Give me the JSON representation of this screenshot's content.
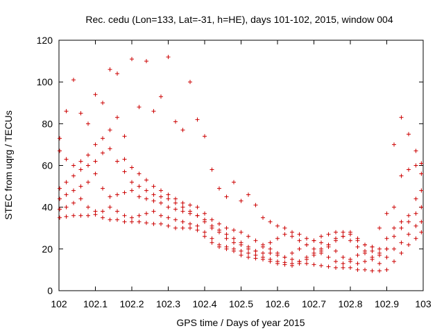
{
  "chart_data": {
    "type": "scatter",
    "title": "Rec. cedu (Lon=133, Lat=-31, h=HE), days 101-102, 2015, window 004",
    "xlabel": "GPS time / Days of year 2015",
    "ylabel": "STEC from uqrg / TECUs",
    "xlim": [
      102,
      103
    ],
    "ylim": [
      0,
      120
    ],
    "x_ticks": [
      "102",
      "102.1",
      "102.2",
      "102.3",
      "102.4",
      "102.5",
      "102.6",
      "102.7",
      "102.8",
      "102.9",
      "103"
    ],
    "y_ticks": [
      "0",
      "20",
      "40",
      "60",
      "80",
      "100",
      "120"
    ],
    "grid": false,
    "legend": "none",
    "marker": "plus",
    "color": "#cc0000",
    "series": [
      {
        "points": [
          [
            102.002,
            35
          ],
          [
            102.02,
            35.5
          ],
          [
            102.04,
            36
          ],
          [
            102.06,
            36
          ],
          [
            102.08,
            36
          ],
          [
            102.1,
            36.5
          ],
          [
            102.12,
            35
          ],
          [
            102.14,
            34
          ],
          [
            102.16,
            34
          ],
          [
            102.18,
            33
          ],
          [
            102.2,
            33
          ],
          [
            102.22,
            33
          ],
          [
            102.24,
            32.5
          ],
          [
            102.26,
            32
          ],
          [
            102.28,
            32
          ],
          [
            102.3,
            31
          ],
          [
            102.32,
            30
          ],
          [
            102.34,
            30
          ],
          [
            102.36,
            30
          ],
          [
            102.38,
            29
          ],
          [
            102.4,
            28
          ],
          [
            102.42,
            25
          ],
          [
            102.44,
            22
          ],
          [
            102.46,
            21
          ],
          [
            102.48,
            20
          ],
          [
            102.5,
            19
          ],
          [
            102.52,
            18
          ],
          [
            102.54,
            17
          ],
          [
            102.56,
            16
          ],
          [
            102.58,
            15
          ],
          [
            102.6,
            14
          ],
          [
            102.62,
            13.5
          ],
          [
            102.64,
            13
          ],
          [
            102.66,
            13
          ],
          [
            102.68,
            13
          ],
          [
            102.7,
            12.5
          ],
          [
            102.72,
            12
          ],
          [
            102.74,
            11.5
          ],
          [
            102.76,
            11
          ],
          [
            102.78,
            11
          ],
          [
            102.8,
            11
          ],
          [
            102.82,
            10
          ],
          [
            102.84,
            10
          ],
          [
            102.86,
            9.5
          ],
          [
            102.88,
            9.5
          ],
          [
            102.9,
            10
          ],
          [
            102.92,
            14
          ],
          [
            102.94,
            18
          ],
          [
            102.96,
            22
          ],
          [
            102.98,
            25
          ],
          [
            102.995,
            28
          ]
        ]
      },
      {
        "points": [
          [
            102.002,
            39
          ],
          [
            102.02,
            40
          ],
          [
            102.04,
            42
          ],
          [
            102.06,
            44
          ],
          [
            102.08,
            40
          ],
          [
            102.1,
            38
          ],
          [
            102.12,
            38
          ],
          [
            102.14,
            40
          ],
          [
            102.16,
            38
          ],
          [
            102.18,
            36
          ],
          [
            102.2,
            35
          ],
          [
            102.22,
            36
          ],
          [
            102.24,
            37
          ],
          [
            102.26,
            38
          ],
          [
            102.28,
            36
          ],
          [
            102.3,
            35
          ],
          [
            102.32,
            34
          ],
          [
            102.34,
            33
          ],
          [
            102.36,
            32
          ],
          [
            102.38,
            31
          ],
          [
            102.4,
            26
          ],
          [
            102.42,
            23
          ],
          [
            102.44,
            21
          ],
          [
            102.46,
            20
          ],
          [
            102.48,
            19
          ],
          [
            102.5,
            17
          ],
          [
            102.52,
            16
          ],
          [
            102.54,
            15.5
          ],
          [
            102.56,
            15
          ],
          [
            102.58,
            14
          ],
          [
            102.6,
            13
          ],
          [
            102.62,
            12.5
          ],
          [
            102.64,
            12
          ],
          [
            102.66,
            14
          ],
          [
            102.68,
            16
          ],
          [
            102.7,
            18
          ],
          [
            102.72,
            20
          ],
          [
            102.74,
            22
          ],
          [
            102.76,
            24
          ],
          [
            102.78,
            26
          ],
          [
            102.8,
            24
          ],
          [
            102.82,
            21
          ],
          [
            102.84,
            18
          ],
          [
            102.86,
            15
          ],
          [
            102.88,
            13
          ],
          [
            102.9,
            16
          ],
          [
            102.92,
            20
          ],
          [
            102.94,
            23
          ],
          [
            102.96,
            27
          ],
          [
            102.98,
            31
          ],
          [
            102.995,
            33
          ]
        ]
      },
      {
        "points": [
          [
            102.002,
            44
          ],
          [
            102.02,
            46
          ],
          [
            102.04,
            48
          ],
          [
            102.06,
            50
          ],
          [
            102.08,
            52
          ],
          [
            102.1,
            56
          ],
          [
            102.12,
            49
          ],
          [
            102.14,
            45
          ],
          [
            102.16,
            46
          ],
          [
            102.18,
            47
          ],
          [
            102.2,
            48
          ],
          [
            102.22,
            45
          ],
          [
            102.24,
            44
          ],
          [
            102.26,
            43
          ],
          [
            102.28,
            42
          ],
          [
            102.3,
            40
          ],
          [
            102.32,
            39
          ],
          [
            102.34,
            38
          ],
          [
            102.36,
            37
          ],
          [
            102.38,
            36
          ],
          [
            102.4,
            34
          ],
          [
            102.42,
            31
          ],
          [
            102.44,
            29
          ],
          [
            102.46,
            27
          ],
          [
            102.48,
            25
          ],
          [
            102.5,
            23
          ],
          [
            102.52,
            21
          ],
          [
            102.54,
            19
          ],
          [
            102.56,
            18
          ],
          [
            102.58,
            18
          ],
          [
            102.6,
            17
          ],
          [
            102.62,
            16
          ],
          [
            102.64,
            18
          ],
          [
            102.66,
            20
          ],
          [
            102.68,
            22
          ],
          [
            102.7,
            24
          ],
          [
            102.72,
            23
          ],
          [
            102.74,
            21
          ],
          [
            102.76,
            19
          ],
          [
            102.78,
            16
          ],
          [
            102.8,
            14
          ],
          [
            102.82,
            13
          ],
          [
            102.84,
            14
          ],
          [
            102.86,
            16
          ],
          [
            102.88,
            18
          ],
          [
            102.9,
            20
          ],
          [
            102.92,
            26
          ],
          [
            102.94,
            30
          ],
          [
            102.96,
            33
          ],
          [
            102.98,
            37
          ],
          [
            102.995,
            40
          ]
        ]
      },
      {
        "points": [
          [
            102.002,
            49
          ],
          [
            102.02,
            52
          ],
          [
            102.04,
            55
          ],
          [
            102.06,
            58
          ],
          [
            102.08,
            60
          ],
          [
            102.1,
            62
          ],
          [
            102.12,
            66
          ],
          [
            102.14,
            68
          ],
          [
            102.16,
            62
          ],
          [
            102.18,
            57
          ],
          [
            102.2,
            52
          ],
          [
            102.22,
            50
          ],
          [
            102.24,
            48
          ],
          [
            102.26,
            46
          ],
          [
            102.28,
            45
          ],
          [
            102.3,
            44
          ],
          [
            102.32,
            42
          ],
          [
            102.34,
            40
          ],
          [
            102.36,
            38
          ],
          [
            102.38,
            36
          ],
          [
            102.4,
            33
          ],
          [
            102.42,
            30
          ],
          [
            102.44,
            28
          ],
          [
            102.46,
            25
          ],
          [
            102.48,
            23
          ],
          [
            102.5,
            22
          ],
          [
            102.52,
            20
          ],
          [
            102.54,
            19
          ],
          [
            102.56,
            21
          ],
          [
            102.58,
            23
          ],
          [
            102.6,
            25
          ],
          [
            102.62,
            27
          ],
          [
            102.64,
            26
          ],
          [
            102.66,
            24
          ],
          [
            102.68,
            22
          ],
          [
            102.7,
            20
          ],
          [
            102.72,
            18
          ],
          [
            102.74,
            16
          ],
          [
            102.76,
            14
          ],
          [
            102.78,
            13
          ],
          [
            102.8,
            15
          ],
          [
            102.82,
            17
          ],
          [
            102.84,
            19
          ],
          [
            102.86,
            21
          ],
          [
            102.88,
            20
          ],
          [
            102.9,
            25
          ],
          [
            102.92,
            30
          ],
          [
            102.94,
            33
          ],
          [
            102.96,
            36
          ],
          [
            102.98,
            44
          ],
          [
            102.995,
            48
          ]
        ]
      },
      {
        "points": [
          [
            102.002,
            67
          ],
          [
            102.02,
            63
          ],
          [
            102.04,
            60
          ],
          [
            102.06,
            62
          ],
          [
            102.08,
            65
          ],
          [
            102.1,
            70
          ],
          [
            102.12,
            73
          ],
          [
            102.14,
            77
          ],
          [
            102.16,
            83
          ],
          [
            102.18,
            63
          ],
          [
            102.2,
            59
          ],
          [
            102.22,
            56
          ],
          [
            102.24,
            53
          ],
          [
            102.26,
            50
          ],
          [
            102.28,
            48
          ],
          [
            102.3,
            46
          ],
          [
            102.32,
            44
          ],
          [
            102.34,
            42
          ],
          [
            102.36,
            41
          ],
          [
            102.38,
            40
          ],
          [
            102.4,
            37
          ],
          [
            102.42,
            34
          ],
          [
            102.44,
            32
          ],
          [
            102.46,
            30
          ],
          [
            102.48,
            29
          ],
          [
            102.5,
            28
          ],
          [
            102.52,
            26
          ],
          [
            102.54,
            24
          ],
          [
            102.56,
            22
          ],
          [
            102.58,
            20
          ],
          [
            102.6,
            18
          ],
          [
            102.62,
            16
          ],
          [
            102.64,
            15
          ],
          [
            102.66,
            14
          ],
          [
            102.68,
            15
          ],
          [
            102.7,
            17
          ],
          [
            102.72,
            19
          ],
          [
            102.74,
            22
          ],
          [
            102.76,
            25
          ],
          [
            102.78,
            28
          ],
          [
            102.8,
            27
          ],
          [
            102.82,
            25
          ],
          [
            102.84,
            22
          ],
          [
            102.86,
            19
          ],
          [
            102.88,
            17
          ],
          [
            102.9,
            20
          ],
          [
            102.92,
            40
          ],
          [
            102.94,
            55
          ],
          [
            102.96,
            58
          ],
          [
            102.98,
            60
          ],
          [
            102.995,
            56
          ]
        ]
      },
      {
        "points": [
          [
            102.002,
            73
          ],
          [
            102.02,
            86
          ],
          [
            102.04,
            101
          ],
          [
            102.06,
            85
          ],
          [
            102.08,
            80
          ],
          [
            102.1,
            94
          ],
          [
            102.12,
            90
          ],
          [
            102.14,
            106
          ],
          [
            102.16,
            104
          ],
          [
            102.18,
            74
          ],
          [
            102.2,
            111
          ],
          [
            102.22,
            88
          ],
          [
            102.24,
            110
          ],
          [
            102.26,
            86
          ],
          [
            102.28,
            93
          ],
          [
            102.3,
            112
          ],
          [
            102.32,
            81
          ],
          [
            102.34,
            77
          ],
          [
            102.36,
            100
          ],
          [
            102.38,
            82
          ],
          [
            102.4,
            74
          ],
          [
            102.42,
            58
          ],
          [
            102.44,
            49
          ],
          [
            102.46,
            45
          ],
          [
            102.48,
            52
          ],
          [
            102.5,
            43
          ],
          [
            102.52,
            46
          ],
          [
            102.54,
            41
          ],
          [
            102.56,
            35
          ],
          [
            102.58,
            33
          ],
          [
            102.6,
            31
          ],
          [
            102.62,
            30
          ],
          [
            102.64,
            28
          ],
          [
            102.66,
            27
          ],
          [
            102.68,
            25
          ],
          [
            102.7,
            24
          ],
          [
            102.72,
            26
          ],
          [
            102.74,
            27
          ],
          [
            102.76,
            28
          ],
          [
            102.78,
            26
          ],
          [
            102.8,
            28
          ],
          [
            102.82,
            24
          ],
          [
            102.84,
            22
          ],
          [
            102.86,
            21
          ],
          [
            102.88,
            30
          ],
          [
            102.9,
            37
          ],
          [
            102.92,
            70
          ],
          [
            102.94,
            83
          ],
          [
            102.96,
            75
          ],
          [
            102.98,
            67
          ],
          [
            102.995,
            61
          ]
        ]
      }
    ]
  }
}
